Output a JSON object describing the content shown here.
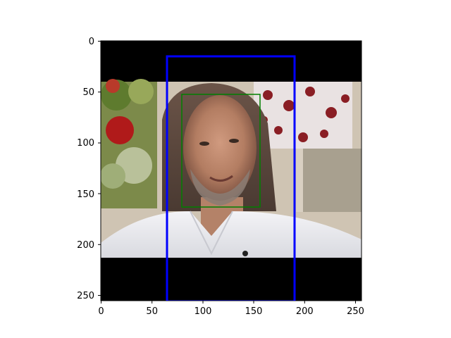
{
  "figure": {
    "image_description_free": true,
    "axes": {
      "x_ticks": [
        0,
        50,
        100,
        150,
        200,
        250
      ],
      "y_ticks": [
        0,
        50,
        100,
        150,
        200,
        250
      ],
      "x_range": [
        0,
        256
      ],
      "y_range": [
        0,
        256
      ]
    },
    "boxes": [
      {
        "name": "outer-box",
        "color": "#0000ff",
        "x0": 65,
        "y0": 15,
        "x1": 190,
        "y1": 256
      },
      {
        "name": "face-box",
        "color": "#008000",
        "x0": 79,
        "y0": 53,
        "x1": 156,
        "y1": 164
      }
    ],
    "letterbox": {
      "top_end": 40,
      "bottom_start": 213
    }
  }
}
